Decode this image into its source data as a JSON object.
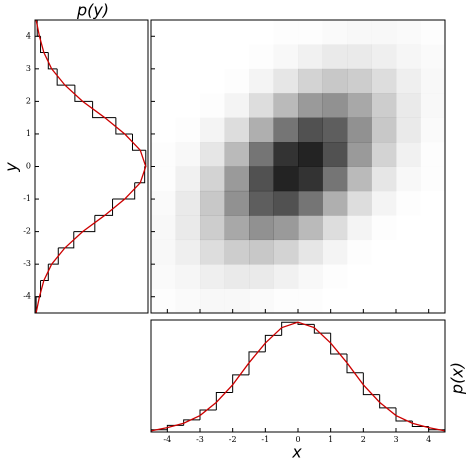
{
  "chart_data": [
    {
      "type": "heatmap",
      "color": "#000000",
      "xbins": [
        -4.5,
        -3.75,
        -3,
        -2.25,
        -1.5,
        -0.75,
        0,
        0.75,
        1.5,
        2.25,
        3,
        3.75,
        4.5
      ],
      "ybins": [
        -4.5,
        -3.75,
        -3,
        -2.25,
        -1.5,
        -0.75,
        0,
        0.75,
        1.5,
        2.25,
        3,
        3.75,
        4.5
      ],
      "xlim": [
        -4.5,
        4.5
      ],
      "ylim": [
        -4.5,
        4.5
      ],
      "values": [
        [
          1,
          2,
          3,
          3,
          2,
          1,
          1,
          0,
          0,
          0,
          0,
          0
        ],
        [
          2,
          4,
          7,
          9,
          9,
          6,
          3,
          1,
          0,
          0,
          0,
          0
        ],
        [
          3,
          7,
          15,
          22,
          24,
          19,
          11,
          5,
          1,
          0,
          0,
          0
        ],
        [
          3,
          9,
          22,
          38,
          48,
          44,
          30,
          15,
          5,
          1,
          0,
          0
        ],
        [
          2,
          9,
          24,
          48,
          70,
          76,
          60,
          35,
          15,
          5,
          1,
          0
        ],
        [
          1,
          6,
          19,
          44,
          76,
          96,
          89,
          60,
          30,
          11,
          3,
          1
        ],
        [
          1,
          3,
          11,
          30,
          60,
          89,
          96,
          76,
          44,
          19,
          6,
          1
        ],
        [
          0,
          1,
          5,
          15,
          35,
          60,
          76,
          70,
          48,
          24,
          9,
          2
        ],
        [
          0,
          0,
          1,
          5,
          15,
          30,
          44,
          48,
          38,
          22,
          9,
          3
        ],
        [
          0,
          0,
          0,
          1,
          5,
          11,
          19,
          24,
          22,
          15,
          7,
          3
        ],
        [
          0,
          0,
          0,
          0,
          1,
          3,
          6,
          9,
          9,
          7,
          4,
          2
        ],
        [
          0,
          0,
          0,
          0,
          0,
          1,
          1,
          2,
          3,
          3,
          2,
          1
        ]
      ]
    },
    {
      "type": "histogram",
      "orientation": "vertical",
      "xlabel": "x",
      "ylabel": "p(x)",
      "color": "#000000",
      "bins": [
        -4.5,
        -4,
        -3.5,
        -3,
        -2.5,
        -2,
        -1.5,
        -1,
        -0.5,
        0,
        0.5,
        1,
        1.5,
        2,
        2.5,
        3,
        3.5,
        4,
        4.5
      ],
      "counts": [
        0.02,
        0.06,
        0.11,
        0.2,
        0.36,
        0.52,
        0.73,
        0.88,
        1.0,
        0.98,
        0.9,
        0.71,
        0.54,
        0.34,
        0.22,
        0.1,
        0.05,
        0.02
      ],
      "curve_x": [
        -4.5,
        -4,
        -3.5,
        -3,
        -2.5,
        -2,
        -1.5,
        -1,
        -0.5,
        0,
        0.5,
        1,
        1.5,
        2,
        2.5,
        3,
        3.5,
        4,
        4.5
      ],
      "curve_values": [
        0.01,
        0.04,
        0.08,
        0.15,
        0.27,
        0.43,
        0.63,
        0.81,
        0.95,
        1,
        0.95,
        0.81,
        0.63,
        0.43,
        0.27,
        0.15,
        0.08,
        0.04,
        0.01
      ],
      "curve_color": "#cc0000",
      "xlim": [
        -4.5,
        4.5
      ],
      "ylim": [
        0,
        1.02
      ],
      "xticks": [
        -4,
        -3,
        -2,
        -1,
        0,
        1,
        2,
        3,
        4
      ]
    },
    {
      "type": "histogram",
      "orientation": "horizontal",
      "title": "p(y)",
      "ylabel": "y",
      "color": "#000000",
      "bins": [
        -4.5,
        -4,
        -3.5,
        -3,
        -2.5,
        -2,
        -1.5,
        -1,
        -0.5,
        0,
        0.5,
        1,
        1.5,
        2,
        2.5,
        3,
        3.5,
        4,
        4.5
      ],
      "counts": [
        0.01,
        0.05,
        0.12,
        0.21,
        0.35,
        0.54,
        0.7,
        0.9,
        0.99,
        1.0,
        0.88,
        0.73,
        0.52,
        0.36,
        0.2,
        0.12,
        0.05,
        0.02
      ],
      "curve_x": [
        -4.5,
        -4,
        -3.5,
        -3,
        -2.5,
        -2,
        -1.5,
        -1,
        -0.5,
        0,
        0.5,
        1,
        1.5,
        2,
        2.5,
        3,
        3.5,
        4,
        4.5
      ],
      "curve_values": [
        0.01,
        0.04,
        0.08,
        0.15,
        0.27,
        0.43,
        0.63,
        0.81,
        0.95,
        1,
        0.95,
        0.81,
        0.63,
        0.43,
        0.27,
        0.15,
        0.08,
        0.04,
        0.01
      ],
      "curve_color": "#cc0000",
      "ylim": [
        -4.5,
        4.5
      ],
      "xlim": [
        0,
        1.02
      ],
      "yticks": [
        -4,
        -3,
        -2,
        -1,
        0,
        1,
        2,
        3,
        4
      ]
    }
  ]
}
